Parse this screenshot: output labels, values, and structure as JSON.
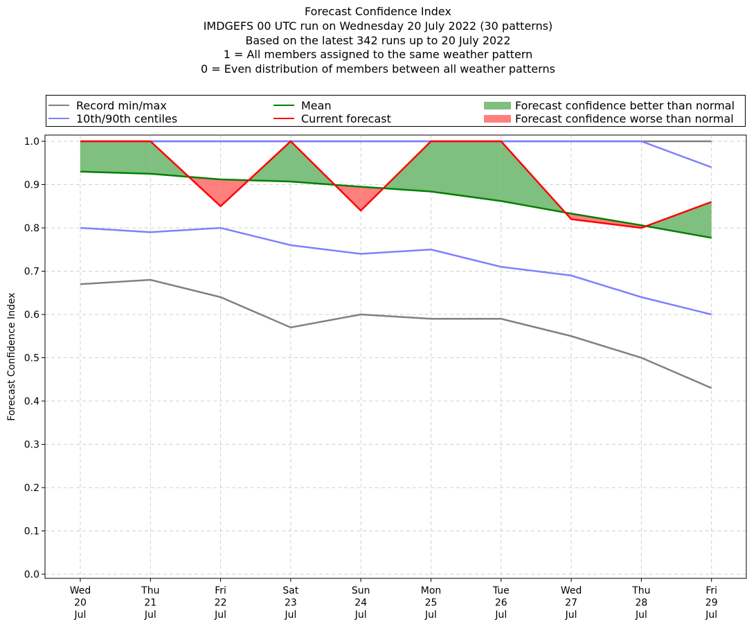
{
  "titles": [
    "Forecast Confidence Index",
    "IMDGEFS 00 UTC run on Wednesday 20 July 2022 (30 patterns)",
    "Based on the latest 342 runs up to 20 July 2022",
    "1 = All members assigned to the same weather pattern",
    "0 = Even distribution of members between all weather patterns"
  ],
  "legend": {
    "record": "Record min/max",
    "centiles": "10th/90th centiles",
    "mean": "Mean",
    "current": "Current forecast",
    "better": "Forecast confidence better than normal",
    "worse": "Forecast confidence worse than normal"
  },
  "colors": {
    "record": "#808080",
    "centiles": "#7f7fff",
    "mean": "#008000",
    "current": "#ff0000",
    "better": "#7fbf7f",
    "worse": "#ff7f7f"
  },
  "chart_data": {
    "type": "line",
    "ylabel": "Forecast Confidence Index",
    "ylim": [
      0.0,
      1.0
    ],
    "yticks": [
      "0.0",
      "0.1",
      "0.2",
      "0.3",
      "0.4",
      "0.5",
      "0.6",
      "0.7",
      "0.8",
      "0.9",
      "1.0"
    ],
    "grid": true,
    "legend_position": "top",
    "x_labels": [
      [
        "Wed",
        "20",
        "Jul"
      ],
      [
        "Thu",
        "21",
        "Jul"
      ],
      [
        "Fri",
        "22",
        "Jul"
      ],
      [
        "Sat",
        "23",
        "Jul"
      ],
      [
        "Sun",
        "24",
        "Jul"
      ],
      [
        "Mon",
        "25",
        "Jul"
      ],
      [
        "Tue",
        "26",
        "Jul"
      ],
      [
        "Wed",
        "27",
        "Jul"
      ],
      [
        "Thu",
        "28",
        "Jul"
      ],
      [
        "Fri",
        "29",
        "Jul"
      ]
    ],
    "series": [
      {
        "name": "Record min/max",
        "key": "record_max",
        "values": [
          1.0,
          1.0,
          1.0,
          1.0,
          1.0,
          1.0,
          1.0,
          1.0,
          1.0,
          1.0
        ]
      },
      {
        "name": "Record min/max",
        "key": "record_min",
        "values": [
          0.67,
          0.68,
          0.64,
          0.57,
          0.6,
          0.59,
          0.59,
          0.55,
          0.5,
          0.43
        ]
      },
      {
        "name": "10th/90th centiles",
        "key": "p90",
        "values": [
          1.0,
          1.0,
          1.0,
          1.0,
          1.0,
          1.0,
          1.0,
          1.0,
          1.0,
          0.94
        ]
      },
      {
        "name": "10th/90th centiles",
        "key": "p10",
        "values": [
          0.8,
          0.79,
          0.8,
          0.76,
          0.74,
          0.75,
          0.71,
          0.69,
          0.64,
          0.6
        ]
      },
      {
        "name": "Mean",
        "key": "mean",
        "values": [
          0.93,
          0.925,
          0.912,
          0.907,
          0.895,
          0.884,
          0.862,
          0.833,
          0.806,
          0.777
        ]
      },
      {
        "name": "Current forecast",
        "key": "current",
        "values": [
          1.0,
          1.0,
          0.85,
          1.0,
          0.84,
          1.0,
          1.0,
          0.82,
          0.8,
          0.86
        ]
      }
    ]
  }
}
